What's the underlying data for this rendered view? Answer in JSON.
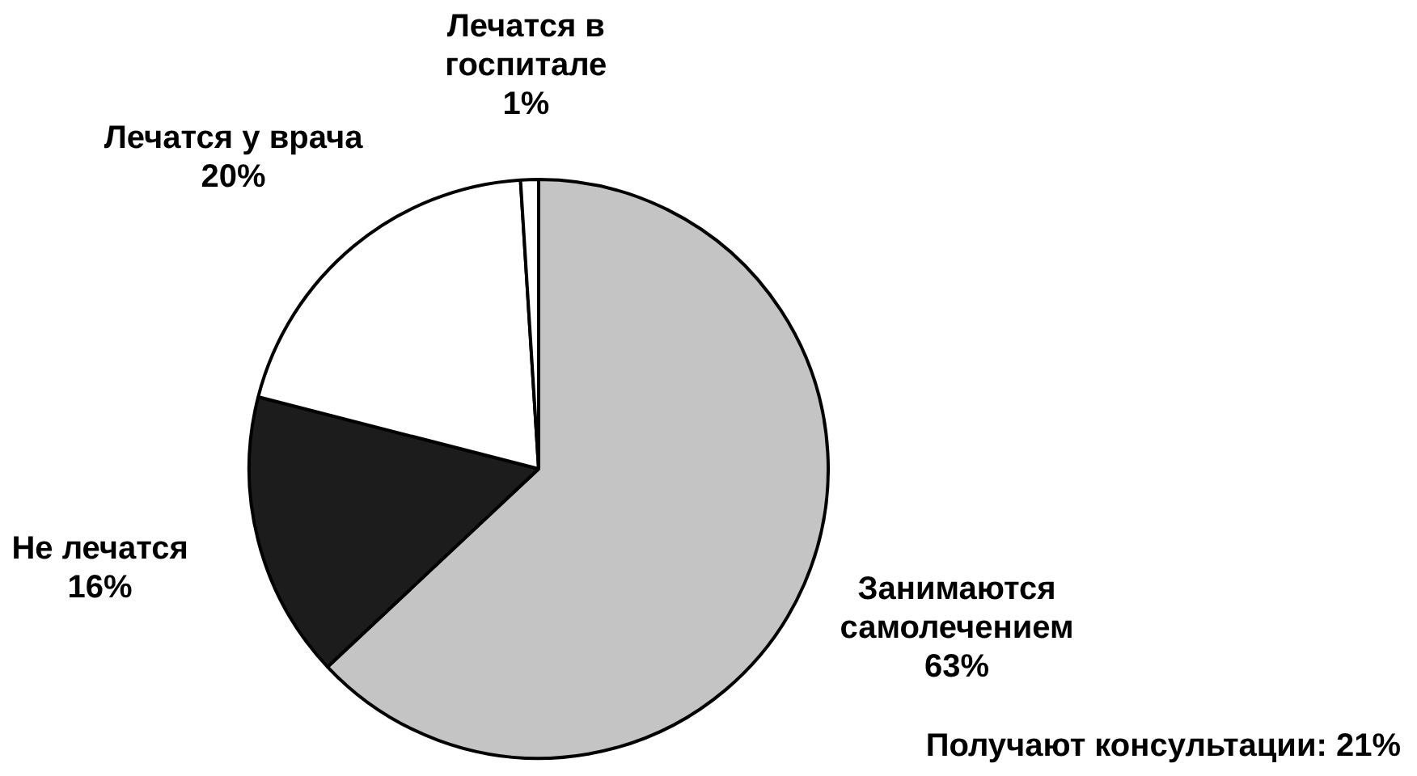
{
  "chart_data": {
    "type": "pie",
    "categories": [
      "Занимаются самолечением",
      "Не лечатся",
      "Лечатся у врача",
      "Лечатся в госпитале"
    ],
    "values": [
      63,
      16,
      20,
      1
    ],
    "colors": [
      "#c4c4c4",
      "#1c1c1c",
      "#ffffff",
      "#ffffff"
    ],
    "value_labels": [
      "63%",
      "16%",
      "20%",
      "1%"
    ],
    "legend": false,
    "annotations": [
      "Получают консультации: 21%"
    ]
  }
}
